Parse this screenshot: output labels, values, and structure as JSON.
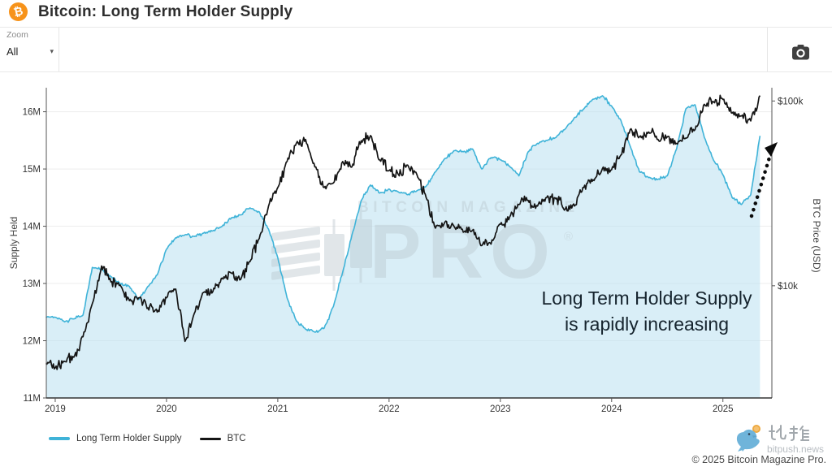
{
  "header": {
    "title": "Bitcoin: Long Term Holder Supply",
    "icon_glyph": "₿"
  },
  "toolbar": {
    "zoom_label": "Zoom",
    "zoom_value": "All",
    "zoom_caret": "▾"
  },
  "watermark": {
    "line1": "BITCOIN MAGAZINE",
    "line2": "PRO",
    "reg": "®"
  },
  "annotation": {
    "line1": "Long Term Holder Supply",
    "line2": "is rapidly increasing"
  },
  "legend": {
    "items": [
      {
        "label": "Long Term Holder Supply",
        "color": "#3fb3d8"
      },
      {
        "label": "BTC",
        "color": "#151515"
      }
    ]
  },
  "footer": {
    "bitpush_cn": "比推",
    "bitpush_domain": "bitpush.news",
    "copyright": "© 2025 Bitcoin Magazine Pro."
  },
  "colors": {
    "accent_orange": "#f7931a",
    "lth_line": "#3fb3d8",
    "lth_fill": "#d9edf7",
    "btc_line": "#151515",
    "grid": "#ededed",
    "watermark": "#b9c6cd"
  },
  "chart_data": {
    "type": "line",
    "title": "Bitcoin: Long Term Holder Supply",
    "grid": "horizontal",
    "legend_position": "bottom-left",
    "x_range": [
      2018.92,
      2025.44
    ],
    "x_ticks": [
      {
        "label": "2019",
        "value": 2019
      },
      {
        "label": "2020",
        "value": 2020
      },
      {
        "label": "2021",
        "value": 2021
      },
      {
        "label": "2022",
        "value": 2022
      },
      {
        "label": "2023",
        "value": 2023
      },
      {
        "label": "2024",
        "value": 2024
      },
      {
        "label": "2025",
        "value": 2025
      }
    ],
    "left_axis": {
      "title": "Supply Held",
      "unit": "BTC (millions)",
      "min": 11,
      "max": 16.42,
      "ticks": [
        {
          "label": "11M",
          "value": 11
        },
        {
          "label": "12M",
          "value": 12
        },
        {
          "label": "13M",
          "value": 13
        },
        {
          "label": "14M",
          "value": 14
        },
        {
          "label": "15M",
          "value": 15
        },
        {
          "label": "16M",
          "value": 16
        }
      ]
    },
    "right_axis": {
      "title": "BTC Price (USD)",
      "scale": "log",
      "unit": "USD (thousands)",
      "min": 2.47,
      "max": 118,
      "ticks": [
        {
          "label": "$10k",
          "value": 10
        },
        {
          "label": "$100k",
          "value": 100
        }
      ]
    },
    "x": [
      "2018-12",
      "2019-01",
      "2019-02",
      "2019-03",
      "2019-04",
      "2019-05",
      "2019-06",
      "2019-07",
      "2019-08",
      "2019-09",
      "2019-10",
      "2019-11",
      "2019-12",
      "2020-01",
      "2020-02",
      "2020-03",
      "2020-04",
      "2020-05",
      "2020-06",
      "2020-07",
      "2020-08",
      "2020-09",
      "2020-10",
      "2020-11",
      "2020-12",
      "2021-01",
      "2021-02",
      "2021-03",
      "2021-04",
      "2021-05",
      "2021-06",
      "2021-07",
      "2021-08",
      "2021-09",
      "2021-10",
      "2021-11",
      "2021-12",
      "2022-01",
      "2022-02",
      "2022-03",
      "2022-04",
      "2022-05",
      "2022-06",
      "2022-07",
      "2022-08",
      "2022-09",
      "2022-10",
      "2022-11",
      "2022-12",
      "2023-01",
      "2023-02",
      "2023-03",
      "2023-04",
      "2023-05",
      "2023-06",
      "2023-07",
      "2023-08",
      "2023-09",
      "2023-10",
      "2023-11",
      "2023-12",
      "2024-01",
      "2024-02",
      "2024-03",
      "2024-04",
      "2024-05",
      "2024-06",
      "2024-07",
      "2024-08",
      "2024-09",
      "2024-10",
      "2024-11",
      "2024-12",
      "2025-01",
      "2025-02",
      "2025-03",
      "2025-04",
      "2025-05"
    ],
    "series": [
      {
        "name": "Long Term Holder Supply",
        "type": "area",
        "axis": "left",
        "color": "#3fb3d8",
        "fill": "#d9edf7",
        "values": [
          12.42,
          12.41,
          12.33,
          12.38,
          12.45,
          13.28,
          13.25,
          13.12,
          13.0,
          12.95,
          12.72,
          12.95,
          13.15,
          13.6,
          13.8,
          13.85,
          13.82,
          13.88,
          13.92,
          14.0,
          14.15,
          14.2,
          14.32,
          14.25,
          13.95,
          13.45,
          12.75,
          12.35,
          12.2,
          12.15,
          12.22,
          12.6,
          13.2,
          13.85,
          14.45,
          14.72,
          14.58,
          14.65,
          14.6,
          14.55,
          14.62,
          14.7,
          14.95,
          15.18,
          15.32,
          15.3,
          15.35,
          15.0,
          15.2,
          15.16,
          15.05,
          14.88,
          15.3,
          15.45,
          15.5,
          15.55,
          15.7,
          15.9,
          16.05,
          16.22,
          16.28,
          16.1,
          15.85,
          15.4,
          14.95,
          14.85,
          14.82,
          14.88,
          15.35,
          16.05,
          16.12,
          15.55,
          15.15,
          14.9,
          14.5,
          14.38,
          14.55,
          15.58
        ]
      },
      {
        "name": "BTC",
        "type": "line",
        "axis": "right",
        "color": "#151515",
        "values": [
          3.8,
          3.6,
          3.9,
          4.1,
          5.3,
          8.0,
          12.8,
          10.5,
          10.1,
          8.3,
          8.6,
          7.6,
          7.2,
          8.6,
          9.6,
          5.0,
          7.1,
          9.2,
          9.3,
          11.0,
          11.7,
          10.8,
          13.5,
          18.0,
          27.0,
          34,
          47,
          59,
          62,
          44,
          34,
          36,
          47,
          44,
          61,
          65,
          48,
          42,
          40,
          45,
          40,
          30,
          20.5,
          22,
          21,
          19.5,
          20,
          16.5,
          16.8,
          21.5,
          23.5,
          27.5,
          29,
          27,
          30,
          29.5,
          26,
          27,
          34,
          37.5,
          43,
          42.5,
          51,
          70,
          64,
          68,
          62,
          64,
          59,
          63,
          70,
          96,
          99,
          102,
          86,
          83,
          78,
          107
        ]
      }
    ]
  }
}
